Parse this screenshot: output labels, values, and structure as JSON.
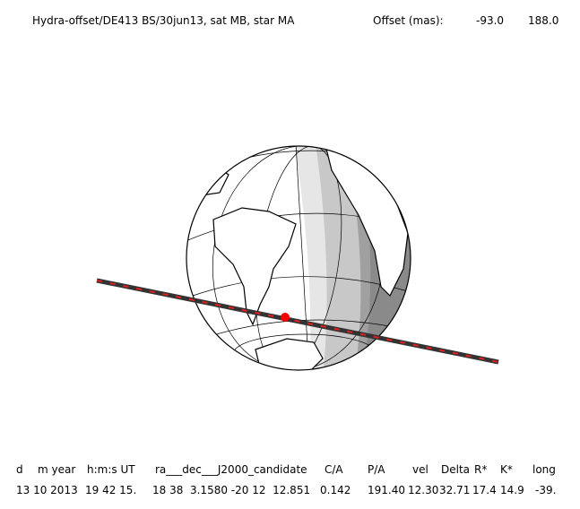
{
  "header": {
    "title": "Hydra-offset/DE413 BS/30jun13, sat MB, star MA",
    "offset_label": "Offset (mas):",
    "offset_values": [
      "-93.0",
      "188.0"
    ]
  },
  "table": {
    "headers": [
      "d",
      "m year",
      "h:m:s UT",
      "ra___dec___J2000_candidate",
      "C/A",
      "P/A",
      "vel",
      "Delta",
      "R*",
      "K*",
      "long"
    ],
    "values": [
      "13 10 2013",
      "19 42 15.",
      "18 38  3.1580 -20 12  12.851",
      "0.142",
      "191.40",
      "12.30",
      "32.71",
      "17.4",
      "14.9",
      "-39."
    ]
  }
}
